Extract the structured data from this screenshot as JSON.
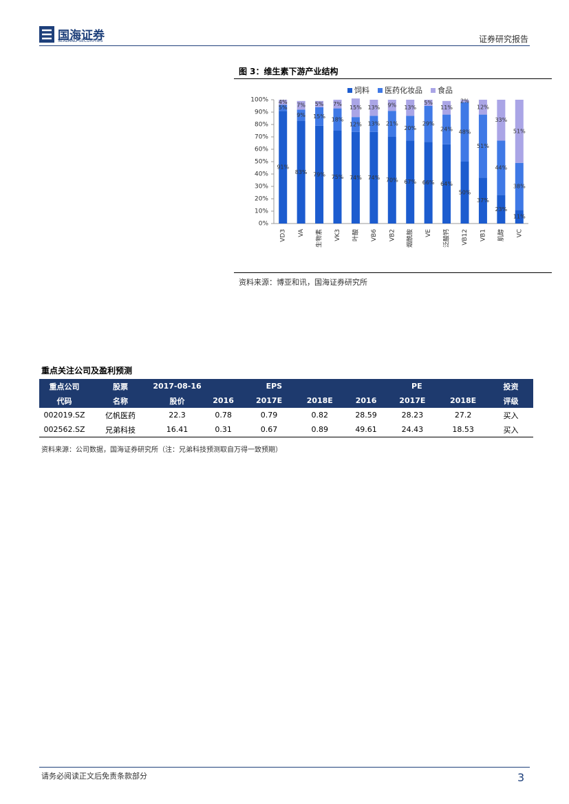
{
  "header": {
    "company": "国海证券",
    "company_en": "SEALAND SECURITIES",
    "report_type": "证券研究报告"
  },
  "chart_data": {
    "type": "stacked_bar",
    "title": "图 3：维生素下游产业结构",
    "source": "资料来源：博亚和讯，国海证券研究所",
    "legend": "top",
    "categories": [
      "VD3",
      "VA",
      "生物素",
      "VK3",
      "叶酸",
      "VB6",
      "VB2",
      "烟酰胺",
      "VE",
      "泛酸钙",
      "VB12",
      "VB1",
      "肌醇",
      "VC"
    ],
    "series": [
      {
        "name": "饲料",
        "color": "#1c5ccf",
        "values": [
          91,
          83,
          79,
          75,
          74,
          74,
          70,
          67,
          66,
          64,
          50,
          37,
          23,
          11
        ],
        "value_labels": [
          "91%",
          "83%",
          "79%",
          "75%",
          "74%",
          "74%",
          "70%",
          "67%",
          "66%",
          "64%",
          "50%",
          "37%",
          "23%",
          "11%"
        ]
      },
      {
        "name": "医药化妆品",
        "color": "#3f79e6",
        "values": [
          5,
          9,
          15,
          18,
          12,
          13,
          21,
          20,
          29,
          24,
          48,
          51,
          44,
          38
        ],
        "value_labels": [
          "5%",
          "9%",
          "15%",
          "18%",
          "12%",
          "13%",
          "21%",
          "20%",
          "29%",
          "24%",
          "48%",
          "51%",
          "44%",
          "38%"
        ]
      },
      {
        "name": "食品",
        "color": "#aaa5e6",
        "values": [
          4,
          7,
          5,
          7,
          15,
          13,
          9,
          13,
          5,
          11,
          2,
          12,
          33,
          51
        ],
        "value_labels": [
          "4%",
          "7%",
          "5%",
          "7%",
          "15%",
          "13%",
          "9%",
          "13%",
          "5%",
          "11%",
          "2%",
          "12%",
          "33%",
          "51%"
        ]
      }
    ],
    "ylim": [
      0,
      100
    ],
    "yticks": [
      {
        "value": 0,
        "label": "0%"
      },
      {
        "value": 10,
        "label": "10%"
      },
      {
        "value": 20,
        "label": "20%"
      },
      {
        "value": 30,
        "label": "30%"
      },
      {
        "value": 40,
        "label": "40%"
      },
      {
        "value": 50,
        "label": "50%"
      },
      {
        "value": 60,
        "label": "60%"
      },
      {
        "value": 70,
        "label": "70%"
      },
      {
        "value": 80,
        "label": "80%"
      },
      {
        "value": 90,
        "label": "90%"
      },
      {
        "value": 100,
        "label": "100%"
      }
    ]
  },
  "table": {
    "title": "重点关注公司及盈利预测",
    "header": [
      [
        "重点公司",
        "股票",
        "2017-08-16",
        "EPS",
        "PE",
        "投资"
      ],
      [
        "代码",
        "名称",
        "股价",
        "2016",
        "2017E",
        "2018E",
        "2016",
        "2017E",
        "2018E",
        "评级"
      ]
    ],
    "rows": [
      [
        "002019.SZ",
        "亿帆医药",
        "22.3",
        "0.78",
        "0.79",
        "0.82",
        "28.59",
        "28.23",
        "27.2",
        "买入"
      ],
      [
        "002562.SZ",
        "兄弟科技",
        "16.41",
        "0.31",
        "0.67",
        "0.89",
        "49.61",
        "24.43",
        "18.53",
        "买入"
      ]
    ],
    "source": "资料来源：公司数据，国海证券研究所（注：兄弟科技预测取自万得一致预期）"
  },
  "footer": {
    "disclaimer": "请务必阅读正文后免责条款部分",
    "page": "3"
  }
}
